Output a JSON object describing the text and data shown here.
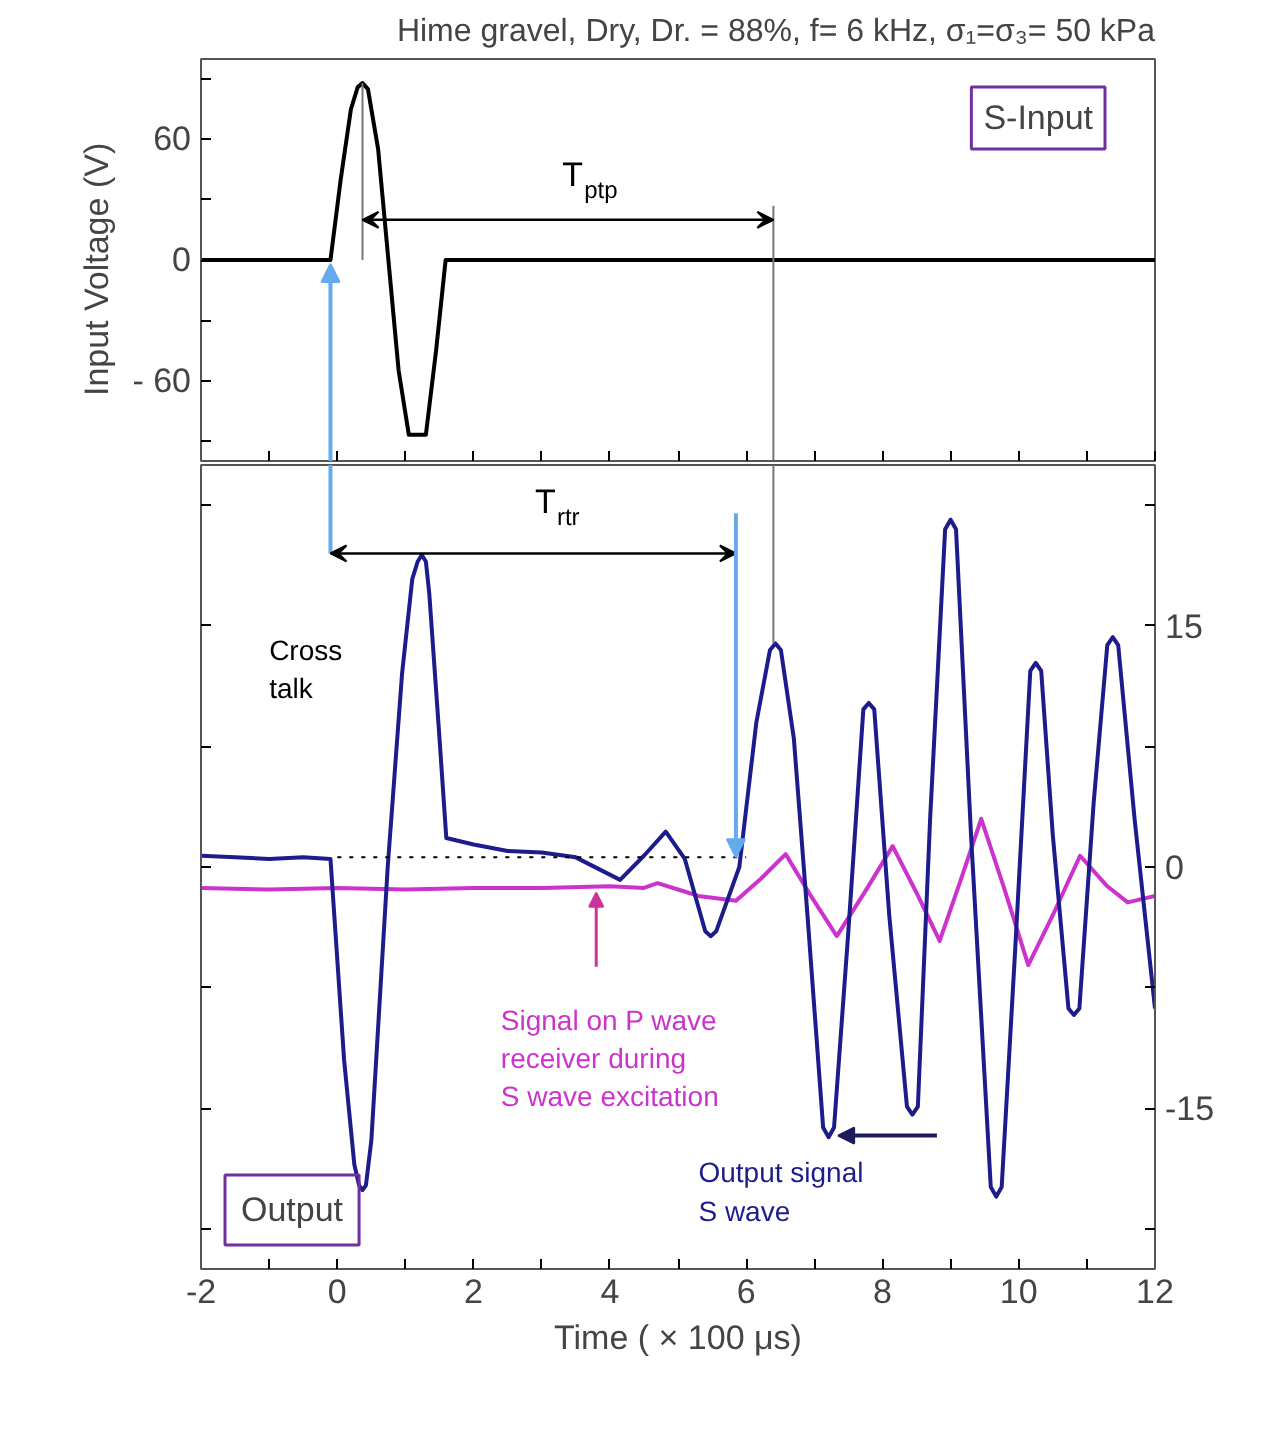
{
  "chart_data": [
    {
      "type": "line",
      "title": "Hime gravel, Dry, Dr. = 88%, f= 6 kHz, σ₁=σ₃= 50 kPa",
      "ylabel": "Input  Voltage  (V)",
      "xlim": [
        -2,
        12
      ],
      "xticks": [
        -2,
        {
          "value": -1,
          "label": null
        },
        0,
        {
          "value": 1,
          "label": null
        },
        2,
        {
          "value": 3,
          "label": null
        },
        4,
        {
          "value": 5,
          "label": null
        },
        6,
        {
          "value": 7,
          "label": null
        },
        8,
        {
          "value": 9,
          "label": null
        },
        10,
        {
          "value": 11,
          "label": null
        },
        12
      ],
      "ylim": [
        -100,
        100
      ],
      "yticks": [
        {
          "value": -90,
          "label": null
        },
        {
          "value": -60,
          "label": "- 60"
        },
        {
          "value": -30,
          "label": null
        },
        0,
        {
          "value": 30,
          "label": null
        },
        60,
        {
          "value": 90,
          "label": null
        }
      ],
      "tick_labels": "y",
      "grid": false,
      "marker": "none",
      "line_style": "solid",
      "series": [
        {
          "color": "#000000",
          "x": [
            -2,
            -0.1,
            0.05,
            0.2,
            0.3,
            0.37,
            0.45,
            0.6,
            0.75,
            0.9,
            1.05,
            1.3,
            1.45,
            1.59,
            12
          ],
          "values": [
            0,
            0,
            40,
            75,
            86,
            88,
            85,
            55,
            0,
            -55,
            -87,
            -87,
            -45,
            0,
            0
          ]
        },
        {
          "color": "#777777",
          "x": [
            0.37,
            0.37
          ],
          "values": [
            88,
            0
          ]
        },
        {
          "color": "#777777",
          "x": [
            6.4,
            6.4
          ],
          "values": [
            27,
            -100
          ]
        }
      ],
      "annotations": [
        "S-Input",
        "T$_{ptp}$"
      ]
    },
    {
      "type": "line",
      "xlabel": "Time ( × 100 μs)",
      "xlim": [
        -2,
        12
      ],
      "xticks": [
        -2,
        {
          "value": -1,
          "label": null
        },
        0,
        {
          "value": 1,
          "label": null
        },
        2,
        {
          "value": 3,
          "label": null
        },
        4,
        {
          "value": 5,
          "label": null
        },
        6,
        {
          "value": 7,
          "label": null
        },
        8,
        {
          "value": 9,
          "label": null
        },
        10,
        {
          "value": 11,
          "label": null
        },
        12
      ],
      "ylim": [
        -25,
        25
      ],
      "yticks": [
        {
          "value": -22.5,
          "label": null
        },
        -15,
        {
          "value": -7.5,
          "label": null
        },
        0,
        {
          "value": 7.5,
          "label": null
        },
        15,
        {
          "value": 22.5,
          "label": null
        }
      ],
      "grid": false,
      "marker": "none",
      "line_style": "solid",
      "series": [
        {
          "color": "#cc33cc",
          "x": [
            -2,
            -1,
            0,
            1,
            2,
            3,
            4,
            4.5,
            4.7,
            5.0,
            5.3,
            5.85,
            6.2,
            6.58,
            6.95,
            7.33,
            7.75,
            8.15,
            8.5,
            8.84,
            9.15,
            9.45,
            9.8,
            10.14,
            10.5,
            10.9,
            11.3,
            11.6,
            12
          ],
          "values": [
            -1.3,
            -1.4,
            -1.3,
            -1.4,
            -1.3,
            -1.3,
            -1.2,
            -1.3,
            -1.0,
            -1.4,
            -1.8,
            -2.1,
            -0.8,
            0.8,
            -1.8,
            -4.3,
            -1.5,
            1.3,
            -1.6,
            -4.6,
            -0.8,
            3.0,
            -1.5,
            -6.1,
            -3,
            0.7,
            -1.2,
            -2.2,
            -1.8
          ]
        },
        {
          "color": "#1c1c8c",
          "x": [
            -2,
            -1.5,
            -1,
            -0.5,
            -0.1,
            0.1,
            0.25,
            0.32,
            0.37,
            0.42,
            0.5,
            0.74,
            0.95,
            1.1,
            1.18,
            1.24,
            1.3,
            1.35,
            1.5,
            1.6,
            2.0,
            2.5,
            3.0,
            3.5,
            4.15,
            4.5,
            4.82,
            5.1,
            5.4,
            5.48,
            5.56,
            5.9,
            6.15,
            6.35,
            6.43,
            6.51,
            6.7,
            6.9,
            7.13,
            7.21,
            7.29,
            7.5,
            7.72,
            7.8,
            7.88,
            8.1,
            8.36,
            8.44,
            8.52,
            8.7,
            8.92,
            9.0,
            9.08,
            9.3,
            9.59,
            9.67,
            9.75,
            9.95,
            10.17,
            10.25,
            10.33,
            10.5,
            10.73,
            10.81,
            10.89,
            11.1,
            11.3,
            11.38,
            11.46,
            11.7,
            12
          ],
          "values": [
            0.7,
            0.6,
            0.5,
            0.6,
            0.5,
            -12,
            -18.5,
            -19.8,
            -20.1,
            -19.8,
            -17,
            0,
            12,
            17.9,
            19,
            19.4,
            19,
            17,
            8,
            1.8,
            1.4,
            1.0,
            0.9,
            0.6,
            -0.8,
            0.7,
            2.2,
            0.5,
            -4,
            -4.3,
            -4,
            0,
            9,
            13.5,
            13.9,
            13.5,
            8,
            -3,
            -16.2,
            -16.8,
            -16.2,
            -4,
            9.8,
            10.2,
            9.8,
            -3,
            -14.9,
            -15.4,
            -14.9,
            3,
            21,
            21.6,
            21,
            2,
            -19.9,
            -20.5,
            -19.9,
            -5,
            12.2,
            12.7,
            12.2,
            2,
            -8.8,
            -9.2,
            -8.8,
            4,
            13.8,
            14.3,
            13.8,
            3,
            -8.8
          ]
        },
        {
          "color": "#000000",
          "line_style": "dotted",
          "x": [
            0,
            6
          ],
          "values": [
            0.6,
            0.6
          ]
        },
        {
          "color": "#777777",
          "x": [
            6.4,
            6.4
          ],
          "values": [
            25,
            13.9
          ]
        }
      ],
      "annotations": [
        "Output",
        "T$_{rtr}$",
        "Cross\ntalk",
        "Signal on P wave\nreceiver during\nS wave excitation",
        "Output signal\nS wave"
      ]
    }
  ]
}
